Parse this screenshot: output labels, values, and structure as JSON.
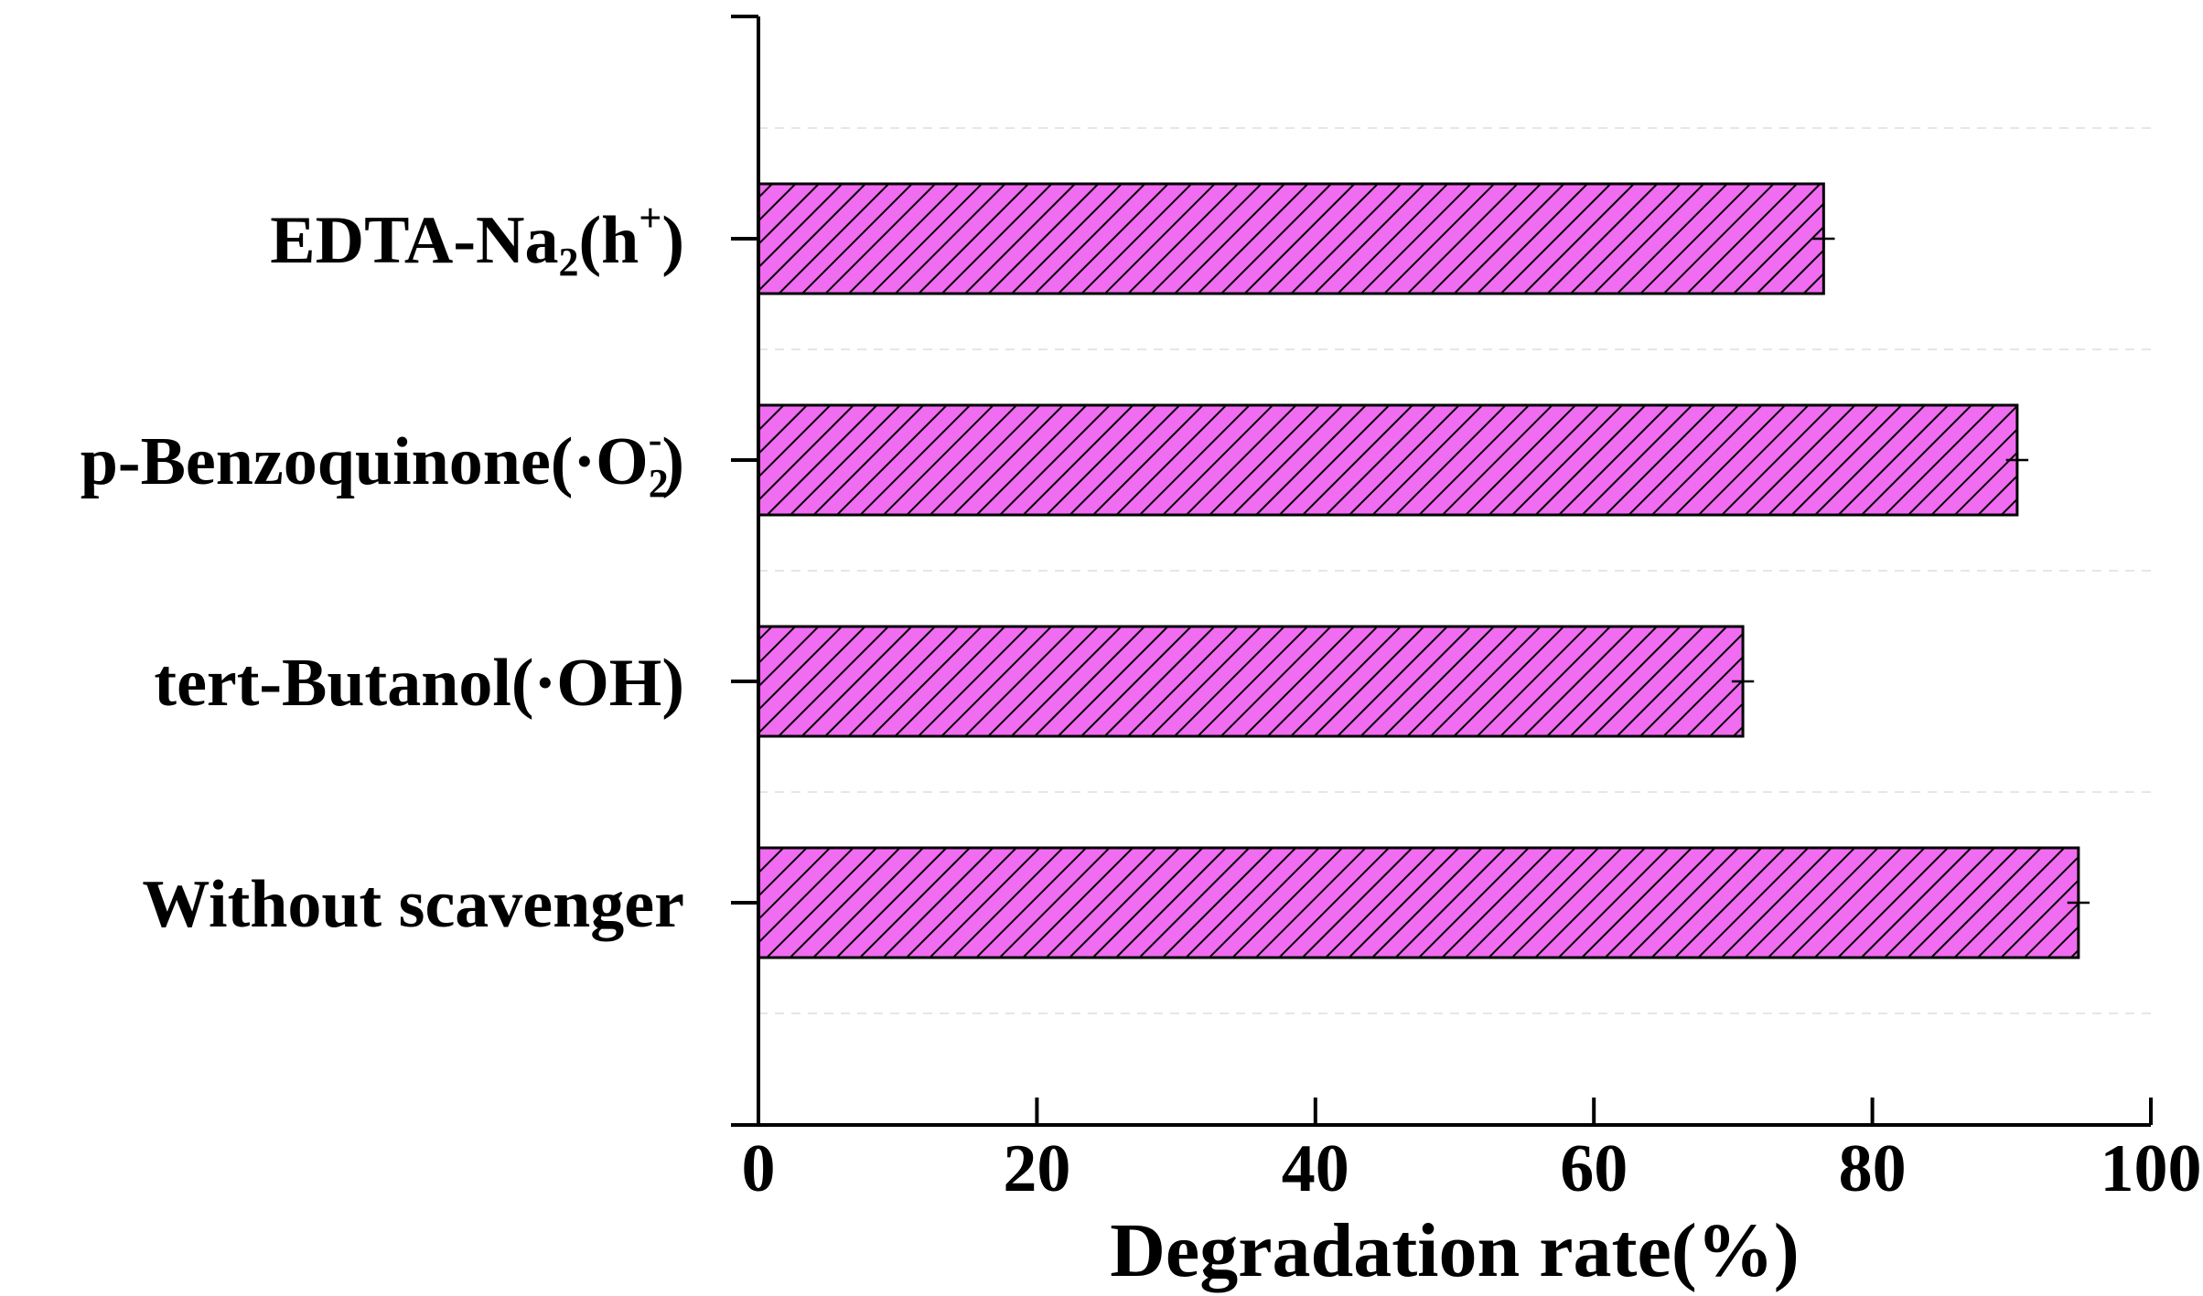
{
  "chart_data": {
    "type": "bar",
    "orientation": "horizontal",
    "title": "",
    "xlabel": "Degradation rate(%)",
    "ylabel": "",
    "xlim": [
      0,
      100
    ],
    "xticks": [
      0,
      20,
      40,
      60,
      80,
      100
    ],
    "grid": "dashed horizontal separators",
    "categories": [
      {
        "text": "Without scavenger"
      },
      {
        "text": "tert-Butanol(·OH)"
      },
      {
        "text": "p-Benzoquinone(·O",
        "sub": "2",
        "sup": "-",
        "tail": ")"
      },
      {
        "text": "EDTA-Na",
        "sub": "2",
        "mid": "(h",
        "sup": "+",
        "tail": ")"
      }
    ],
    "values": [
      94.8,
      70.7,
      90.4,
      76.5
    ],
    "errors": [
      0.8,
      0.8,
      0.8,
      0.8
    ],
    "colors": {
      "bar_fill": "#f06cf0",
      "hatch": "#000000",
      "grid": "#e6e6e6",
      "axis": "#000000"
    }
  }
}
